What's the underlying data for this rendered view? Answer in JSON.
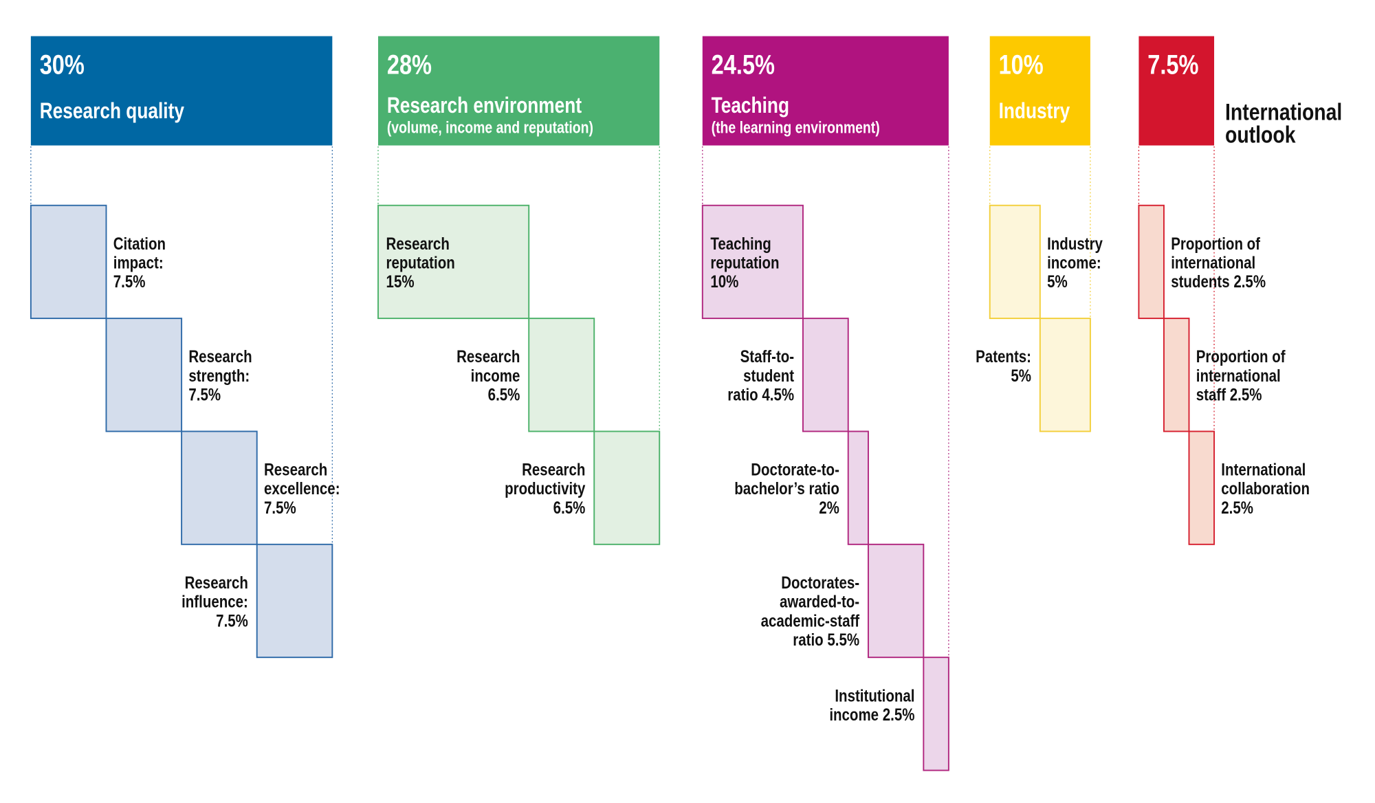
{
  "groups": [
    {
      "weight": "30%",
      "name": "Research quality",
      "items": [
        "Citation\nimpact:\n7.5%",
        "Research\nstrength:\n7.5%",
        "Research\nexcellence:\n7.5%",
        "Research\ninfluence:\n7.5%"
      ]
    },
    {
      "weight": "28%",
      "name": "Research environment",
      "subtitle": "(volume, income and reputation)",
      "items": [
        "Research\nreputation\n15%",
        "Research\nincome\n6.5%",
        "Research\nproductivity\n6.5%"
      ]
    },
    {
      "weight": "24.5%",
      "name": "Teaching",
      "subtitle": "(the learning environment)",
      "items": [
        "Teaching\nreputation\n10%",
        "Staff-to-\nstudent\nratio 4.5%",
        "Doctorate-to-\nbachelor’s ratio\n2%",
        "Doctorates-\nawarded-to-\nacademic-staff\nratio 5.5%",
        "Institutional\nincome 2.5%"
      ]
    },
    {
      "weight": "10%",
      "name": "Industry",
      "items": [
        "Industry\nincome:\n5%",
        "Patents:\n5%"
      ]
    },
    {
      "weight": "7.5%",
      "name": "International\noutlook",
      "items": [
        "Proportion of\ninternational\nstudents 2.5%",
        "Proportion of\ninternational\nstaff 2.5%",
        "International\ncollaboration\n2.5%"
      ]
    }
  ]
}
